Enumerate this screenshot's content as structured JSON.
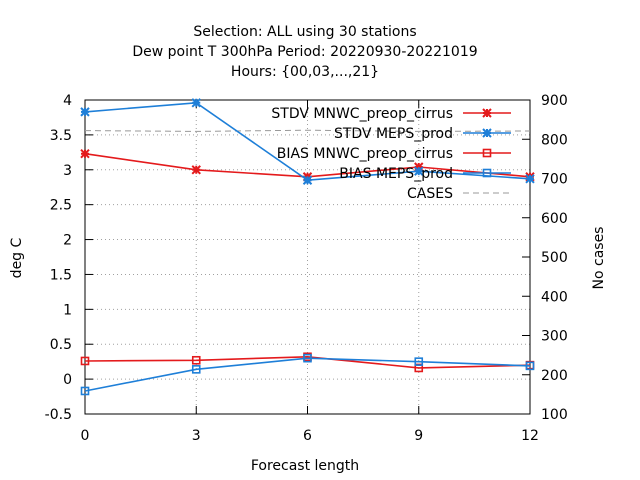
{
  "chart_data": {
    "type": "line",
    "title_lines": [
      "Selection: ALL using    30 stations",
      "Dew point T 300hPa   Period: 20220930-20221019",
      "Hours: {00,03,...,21}"
    ],
    "xlabel": "Forecast length",
    "ylabel": "deg C",
    "y2label": "No cases",
    "x": [
      0,
      3,
      6,
      9,
      12
    ],
    "xticks": [
      "0",
      "3",
      "6",
      "9",
      "12"
    ],
    "xlim": [
      0,
      12
    ],
    "ylim": [
      -0.5,
      4
    ],
    "yticks": [
      "-0.5",
      "0",
      "0.5",
      "1",
      "1.5",
      "2",
      "2.5",
      "3",
      "3.5",
      "4"
    ],
    "y2lim": [
      100,
      900
    ],
    "y2ticks": [
      "100",
      "200",
      "300",
      "400",
      "500",
      "600",
      "700",
      "800",
      "900"
    ],
    "grid": true,
    "legend_position": "top-right",
    "series": [
      {
        "name": "STDV MNWC_preop_cirrus",
        "axis": "y",
        "color": "#e41a1c",
        "marker": "star",
        "dash": "",
        "values": [
          3.23,
          3.0,
          2.9,
          3.04,
          2.9
        ]
      },
      {
        "name": "STDV MEPS_prod",
        "axis": "y",
        "color": "#1e7fd8",
        "marker": "star",
        "dash": "",
        "values": [
          3.83,
          3.96,
          2.85,
          2.98,
          2.87
        ]
      },
      {
        "name": "BIAS MNWC_preop_cirrus",
        "axis": "y",
        "color": "#e41a1c",
        "marker": "square",
        "dash": "",
        "values": [
          0.26,
          0.27,
          0.32,
          0.16,
          0.2
        ]
      },
      {
        "name": "BIAS MEPS_prod",
        "axis": "y",
        "color": "#1e7fd8",
        "marker": "square",
        "dash": "",
        "values": [
          -0.17,
          0.14,
          0.3,
          0.25,
          0.19
        ]
      },
      {
        "name": "CASES",
        "axis": "y2",
        "color": "#999999",
        "marker": "none",
        "dash": "6,4",
        "values": [
          822,
          820,
          823,
          820,
          821
        ]
      }
    ]
  }
}
